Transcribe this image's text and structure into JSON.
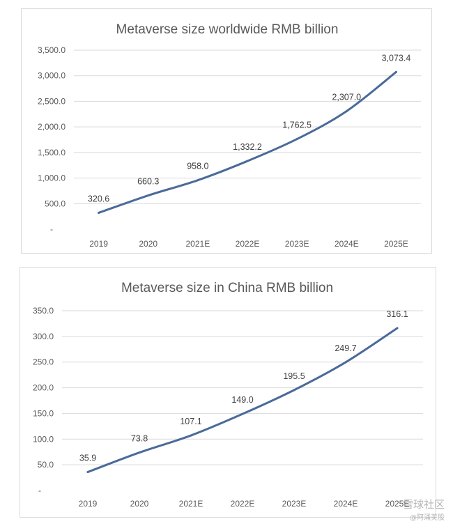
{
  "chart_data": [
    {
      "type": "line",
      "title": "Metaverse size worldwide RMB billion",
      "categories": [
        "2019",
        "2020",
        "2021E",
        "2022E",
        "2023E",
        "2024E",
        "2025E"
      ],
      "values": [
        320.6,
        660.3,
        958.0,
        1332.2,
        1762.5,
        2307.0,
        3073.4
      ],
      "data_labels": [
        "320.6",
        "660.3",
        "958.0",
        "1,332.2",
        "1,762.5",
        "2,307.0",
        "3,073.4"
      ],
      "y_ticks": [
        0,
        500,
        1000,
        1500,
        2000,
        2500,
        3000,
        3500
      ],
      "y_tick_labels": [
        "-",
        "500.0",
        "1,000.0",
        "1,500.0",
        "2,000.0",
        "2,500.0",
        "3,000.0",
        "3,500.0"
      ],
      "ylim": [
        0,
        3500
      ],
      "grid": true,
      "line_color": "#4a6a9a"
    },
    {
      "type": "line",
      "title": "Metaverse size in China RMB billion",
      "categories": [
        "2019",
        "2020",
        "2021E",
        "2022E",
        "2023E",
        "2024E",
        "2025E"
      ],
      "values": [
        35.9,
        73.8,
        107.1,
        149.0,
        195.5,
        249.7,
        316.1
      ],
      "data_labels": [
        "35.9",
        "73.8",
        "107.1",
        "149.0",
        "195.5",
        "249.7",
        "316.1"
      ],
      "y_ticks": [
        0,
        50,
        100,
        150,
        200,
        250,
        300,
        350
      ],
      "y_tick_labels": [
        "-",
        "50.0",
        "100.0",
        "150.0",
        "200.0",
        "250.0",
        "300.0",
        "350.0"
      ],
      "ylim": [
        0,
        350
      ],
      "grid": true,
      "line_color": "#4a6a9a"
    }
  ],
  "watermark": {
    "line1": "雪球社区",
    "line2": "@阿涌美股"
  }
}
